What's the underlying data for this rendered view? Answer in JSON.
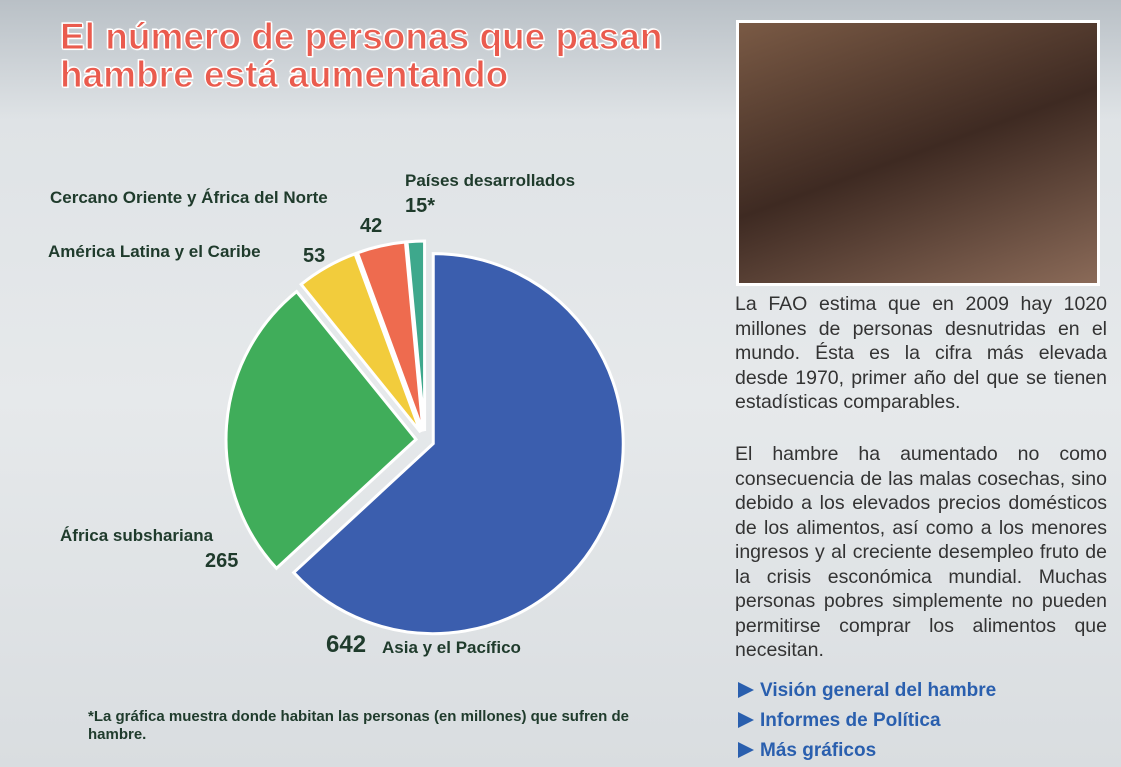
{
  "title": "El número de personas que pasan hambre está aumentando",
  "chart_data": {
    "type": "pie",
    "categories": [
      "Asia y el Pacífico",
      "África subshariana",
      "América Latina y el Caribe",
      "Cercano Oriente y África del Norte",
      "Países desarrollados"
    ],
    "values": [
      642,
      265,
      53,
      42,
      15
    ],
    "value_labels": [
      "642",
      "265",
      "53",
      "42",
      "15*"
    ],
    "colors": [
      "#3b5eae",
      "#40ad5a",
      "#f2cc3c",
      "#ee6b4f",
      "#3ea88c"
    ]
  },
  "footnote": "*La gráfica muestra donde habitan las personas (en millones) que sufren de hambre.",
  "paragraphs": [
    "La FAO estima que en 2009 hay 1020 millones de personas desnutridas en el mundo. Ésta es la cifra más elevada desde 1970, primer año del que se tienen estadísticas comparables.",
    "El hambre ha aumentado no como consecuencia de las malas cosechas, sino debido a los elevados precios domésticos de los alimentos, así como a los menores ingresos y al creciente desempleo fruto de la crisis esconómica mundial. Muchas personas pobres simplemente no pueden permitirse comprar los alimentos que necesitan."
  ],
  "links": [
    "Visión general del hambre",
    "Informes de Política",
    "Más gráficos"
  ]
}
